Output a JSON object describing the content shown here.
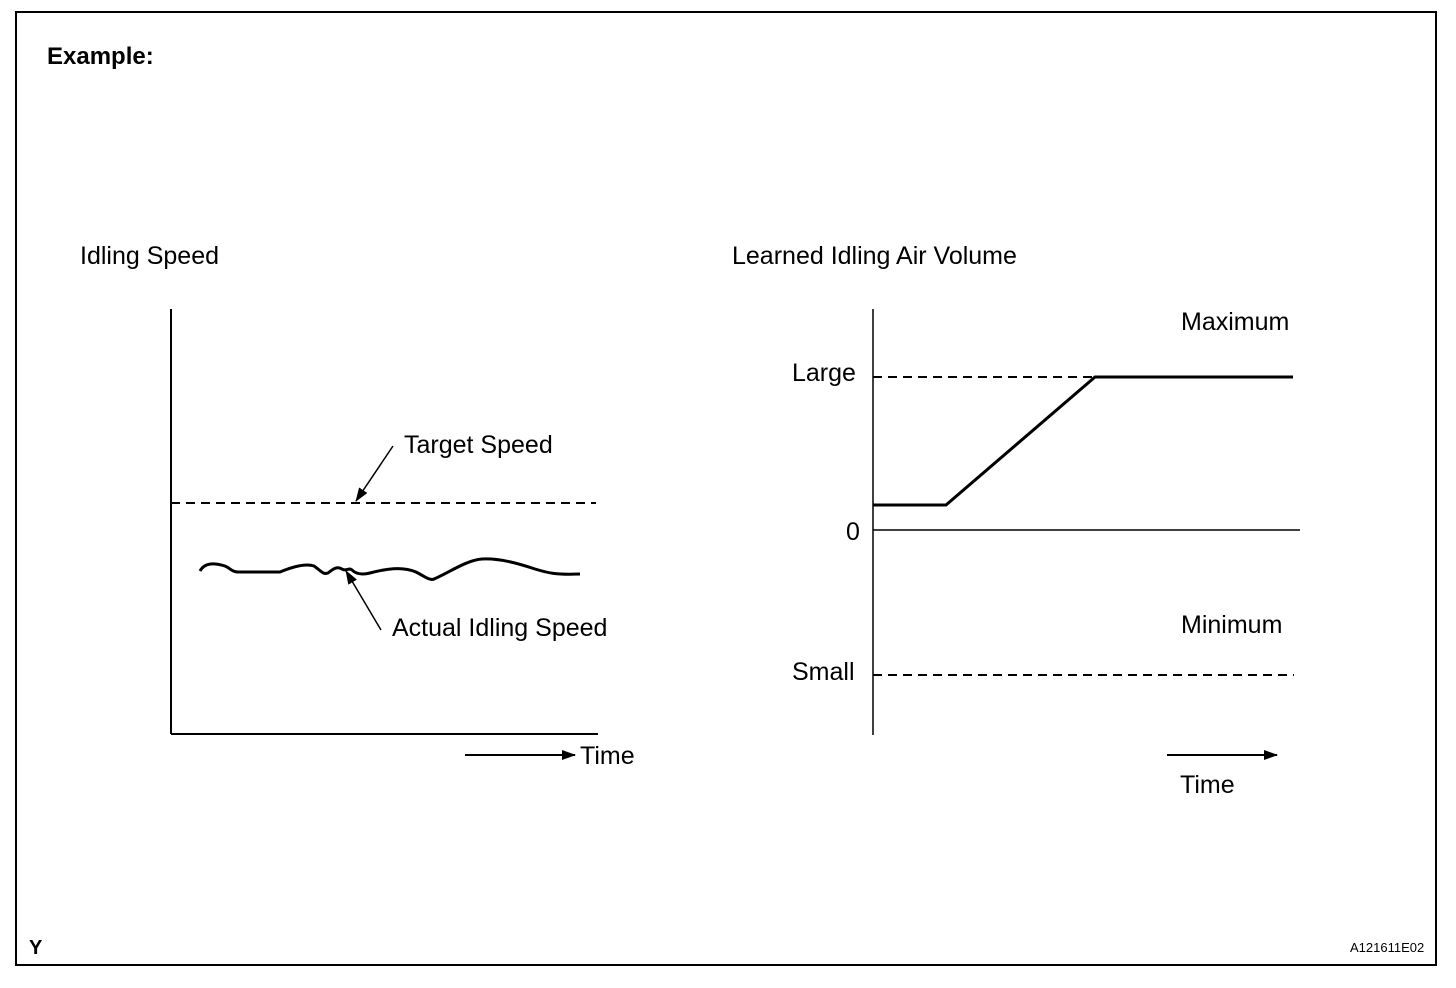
{
  "header": {
    "label": "Example:"
  },
  "left_chart": {
    "title": "Idling Speed",
    "target_label": "Target Speed",
    "actual_label": "Actual Idling Speed",
    "x_label": "Time"
  },
  "right_chart": {
    "title": "Learned Idling Air Volume",
    "large_label": "Large",
    "zero_label": "0",
    "small_label": "Small",
    "maximum_label": "Maximum",
    "minimum_label": "Minimum",
    "x_label": "Time"
  },
  "footer": {
    "corner_mark": "Y",
    "figure_code": "A121611E02"
  }
}
